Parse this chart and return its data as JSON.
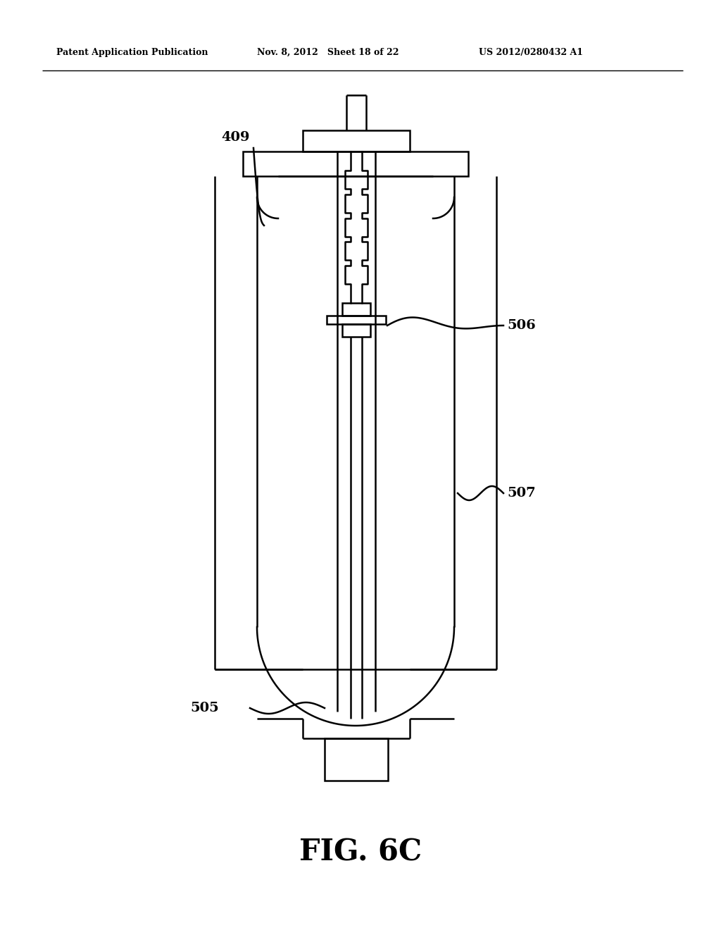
{
  "header_left": "Patent Application Publication",
  "header_mid": "Nov. 8, 2012   Sheet 18 of 22",
  "header_right": "US 2012/0280432 A1",
  "title": "FIG. 6C",
  "label_409": "409",
  "label_506": "506",
  "label_507": "507",
  "label_505": "505",
  "bg_color": "#ffffff",
  "line_color": "#000000",
  "lw": 1.8
}
